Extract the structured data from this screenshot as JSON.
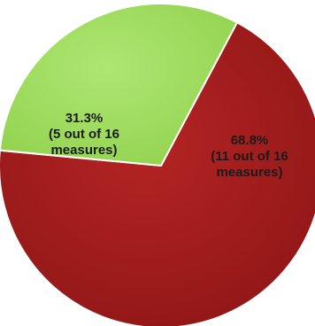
{
  "chart_data": {
    "type": "pie",
    "title": "",
    "slices": [
      {
        "value": 68.8,
        "count": 11,
        "total": 16,
        "color": "#9e1b1b",
        "label_lines": [
          "68.8%",
          "(11 out of 16",
          "measures)"
        ]
      },
      {
        "value": 31.3,
        "count": 5,
        "total": 16,
        "color": "#9fdc5e",
        "label_lines": [
          "31.3%",
          "(5 out of 16",
          "measures)"
        ]
      }
    ],
    "legend": "none",
    "stroke_color": "#ffffff"
  }
}
